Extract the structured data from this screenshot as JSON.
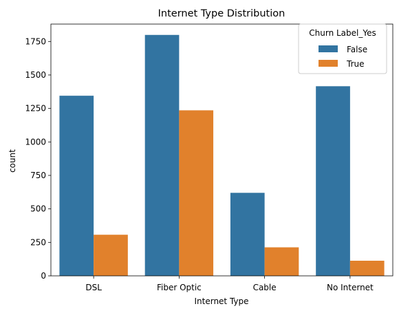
{
  "chart_data": {
    "type": "bar",
    "title": "Internet Type Distribution",
    "xlabel": "Internet Type",
    "ylabel": "count",
    "categories": [
      "DSL",
      "Fiber Optic",
      "Cable",
      "No Internet"
    ],
    "series": [
      {
        "name": "False",
        "values": [
          1345,
          1799,
          620,
          1416
        ],
        "color": "#3274a1"
      },
      {
        "name": "True",
        "values": [
          307,
          1236,
          213,
          113
        ],
        "color": "#e1812c"
      }
    ],
    "ylim": [
      0,
      1880
    ],
    "yticks": [
      0,
      250,
      500,
      750,
      1000,
      1250,
      1500,
      1750
    ],
    "legend": {
      "title": "Churn Label_Yes",
      "placement": "top-right"
    },
    "grid": false
  }
}
